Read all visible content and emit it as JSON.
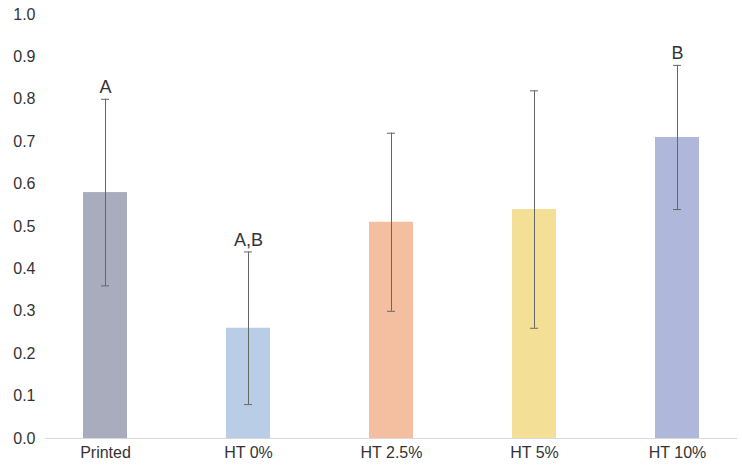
{
  "chart_data": {
    "type": "bar",
    "categories": [
      "Printed",
      "HT 0%",
      "HT 2.5%",
      "HT 5%",
      "HT 10%"
    ],
    "values": [
      0.58,
      0.26,
      0.51,
      0.54,
      0.71
    ],
    "errors": [
      0.22,
      0.18,
      0.21,
      0.28,
      0.17
    ],
    "colors": [
      "#a8acbd",
      "#b9cde6",
      "#f4bfa0",
      "#f4df97",
      "#afb8da"
    ],
    "group_labels": [
      "A",
      "A,B",
      null,
      null,
      "B"
    ],
    "ylim": [
      0,
      1
    ],
    "yticks": [
      {
        "value": 0,
        "label": "0.0"
      },
      0.1,
      0.2,
      0.3,
      0.4,
      0.5,
      0.6,
      0.7,
      0.8,
      0.9,
      {
        "value": 1,
        "label": "1.0"
      }
    ],
    "grid": false
  }
}
